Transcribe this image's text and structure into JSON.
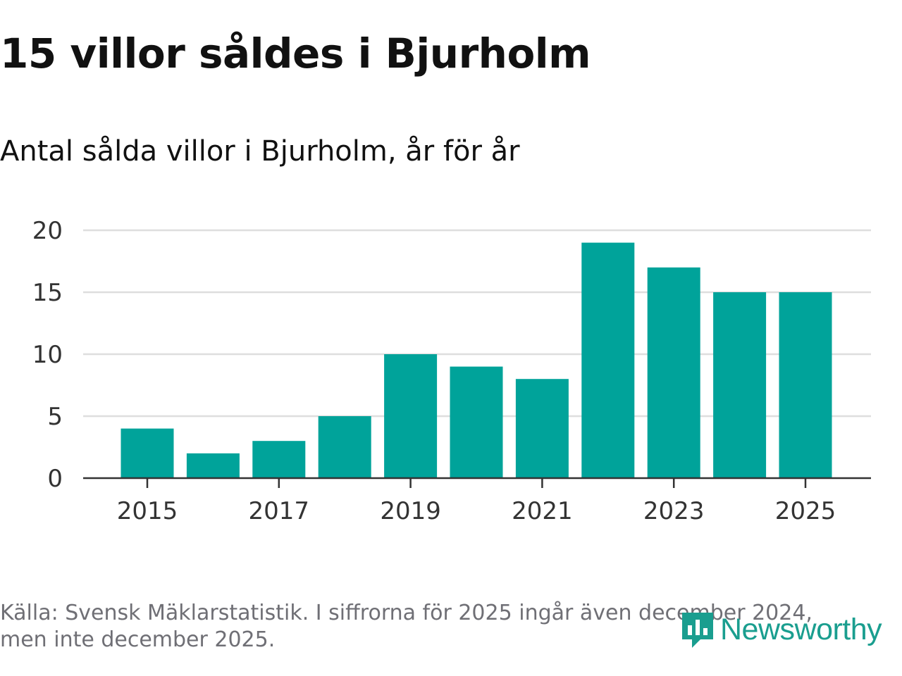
{
  "header": {
    "title": "15 villor såldes i Bjurholm",
    "subtitle": "Antal sålda villor i Bjurholm, år för år"
  },
  "chart_data": {
    "type": "bar",
    "title": "15 villor såldes i Bjurholm",
    "subtitle": "Antal sålda villor i Bjurholm, år för år",
    "xlabel": "",
    "ylabel": "",
    "categories": [
      "2015",
      "2016",
      "2017",
      "2018",
      "2019",
      "2020",
      "2021",
      "2022",
      "2023",
      "2024",
      "2025"
    ],
    "values": [
      4,
      2,
      3,
      5,
      10,
      9,
      8,
      19,
      17,
      15,
      15
    ],
    "x_tick_labels": [
      "2015",
      "2017",
      "2019",
      "2021",
      "2023",
      "2025"
    ],
    "y_ticks": [
      0,
      5,
      10,
      15,
      20
    ],
    "ylim": [
      0,
      20
    ],
    "grid": true,
    "bar_color": "#00a39a"
  },
  "footer": {
    "source_line1": "Källa: Svensk Mäklarstatistik. I siffrorna för 2025 ingår även december 2024,",
    "source_line2": "men inte december 2025.",
    "logo_text": "Newsworthy",
    "logo_color": "#1a9e8f"
  }
}
